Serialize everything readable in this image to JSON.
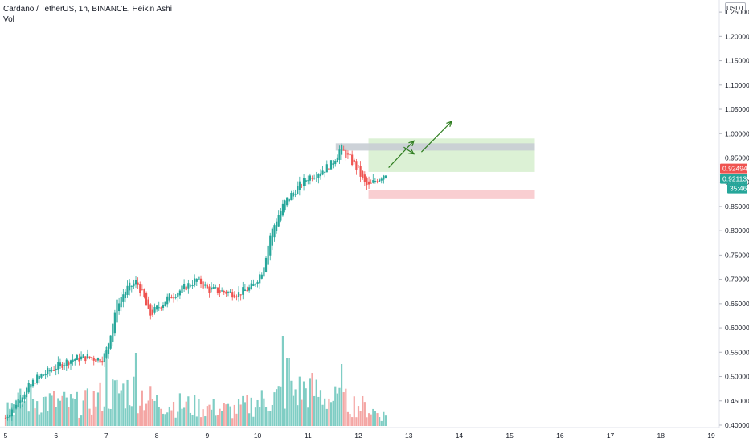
{
  "header": {
    "symbol_title": "Cardano / TetherUS, 1h, BINANCE, Heikin Ashi",
    "volume_label": "Vol",
    "currency": "USDT"
  },
  "colors": {
    "up": "#26a69a",
    "down": "#ef5350",
    "up_volume": "#7fcdc4",
    "down_volume": "#f4a6a4",
    "target_zone": "#d8efd0",
    "stop_zone": "#f8c9cc",
    "entry_zone": "#c8cdd4",
    "arrow": "#2e7d1f",
    "price_line": "#5ab0a6"
  },
  "price_labels": {
    "last": "0.92494",
    "close": "0.92113",
    "countdown": "35:46"
  },
  "chart_data": {
    "type": "candlestick",
    "title": "Cardano / TetherUS, 1h, BINANCE, Heikin Ashi",
    "xlabel": "",
    "ylabel": "",
    "x_ticks": [
      "5",
      "6",
      "7",
      "8",
      "9",
      "10",
      "11",
      "12",
      "13",
      "14",
      "15",
      "16",
      "17",
      "18",
      "19"
    ],
    "y_ticks": [
      "0.40000",
      "0.45000",
      "0.50000",
      "0.55000",
      "0.60000",
      "0.65000",
      "0.70000",
      "0.75000",
      "0.80000",
      "0.85000",
      "0.90000",
      "0.95000",
      "1.00000",
      "1.05000",
      "1.10000",
      "1.15000",
      "1.20000",
      "1.25000"
    ],
    "ylim": [
      0.395,
      1.275
    ],
    "xlim": [
      5.0,
      19.0
    ],
    "grid": false,
    "price_path": [
      [
        5.0,
        0.415
      ],
      [
        5.3,
        0.46
      ],
      [
        5.6,
        0.495
      ],
      [
        6.0,
        0.52
      ],
      [
        6.3,
        0.535
      ],
      [
        6.6,
        0.54
      ],
      [
        6.9,
        0.535
      ],
      [
        7.0,
        0.55
      ],
      [
        7.1,
        0.6
      ],
      [
        7.2,
        0.65
      ],
      [
        7.4,
        0.68
      ],
      [
        7.6,
        0.695
      ],
      [
        7.75,
        0.66
      ],
      [
        7.85,
        0.625
      ],
      [
        8.0,
        0.64
      ],
      [
        8.2,
        0.66
      ],
      [
        8.5,
        0.68
      ],
      [
        8.8,
        0.7
      ],
      [
        9.0,
        0.68
      ],
      [
        9.3,
        0.675
      ],
      [
        9.6,
        0.67
      ],
      [
        9.9,
        0.685
      ],
      [
        10.1,
        0.72
      ],
      [
        10.25,
        0.79
      ],
      [
        10.4,
        0.83
      ],
      [
        10.55,
        0.86
      ],
      [
        10.8,
        0.89
      ],
      [
        11.0,
        0.91
      ],
      [
        11.2,
        0.92
      ],
      [
        11.45,
        0.935
      ],
      [
        11.65,
        0.97
      ],
      [
        11.85,
        0.945
      ],
      [
        12.0,
        0.925
      ],
      [
        12.1,
        0.9
      ],
      [
        12.2,
        0.89
      ],
      [
        12.35,
        0.905
      ],
      [
        12.55,
        0.92
      ]
    ],
    "volume_ylim": [
      0,
      0.2
    ],
    "volume_profile": [
      [
        5.0,
        0.04
      ],
      [
        5.5,
        0.05
      ],
      [
        6.0,
        0.045
      ],
      [
        6.5,
        0.04
      ],
      [
        7.0,
        0.06
      ],
      [
        7.5,
        0.07
      ],
      [
        8.0,
        0.045
      ],
      [
        8.5,
        0.04
      ],
      [
        9.0,
        0.035
      ],
      [
        9.5,
        0.03
      ],
      [
        10.0,
        0.045
      ],
      [
        10.5,
        0.06
      ],
      [
        11.0,
        0.07
      ],
      [
        11.5,
        0.05
      ],
      [
        12.0,
        0.04
      ],
      [
        12.5,
        0.02
      ]
    ],
    "volume_spikes": [
      [
        7.0,
        0.14
      ],
      [
        7.6,
        0.13
      ],
      [
        10.5,
        0.16
      ],
      [
        10.6,
        0.12
      ],
      [
        11.65,
        0.11
      ]
    ],
    "current_price": 0.92494,
    "position_zones": [
      {
        "kind": "target",
        "x_start": 12.2,
        "x_end": 15.5,
        "y_low": 0.92113,
        "y_high": 0.99
      },
      {
        "kind": "entry",
        "x_start": 11.55,
        "x_end": 15.5,
        "y_low": 0.965,
        "y_high": 0.98
      },
      {
        "kind": "stop",
        "x_start": 12.2,
        "x_end": 15.5,
        "y_low": 0.865,
        "y_high": 0.883
      }
    ],
    "arrows": [
      {
        "from": [
          12.6,
          0.93
        ],
        "to": [
          13.1,
          0.985
        ]
      },
      {
        "from": [
          13.25,
          0.962
        ],
        "to": [
          13.85,
          1.025
        ]
      },
      {
        "from": [
          12.9,
          0.972
        ],
        "to": [
          13.1,
          0.958
        ]
      }
    ]
  }
}
